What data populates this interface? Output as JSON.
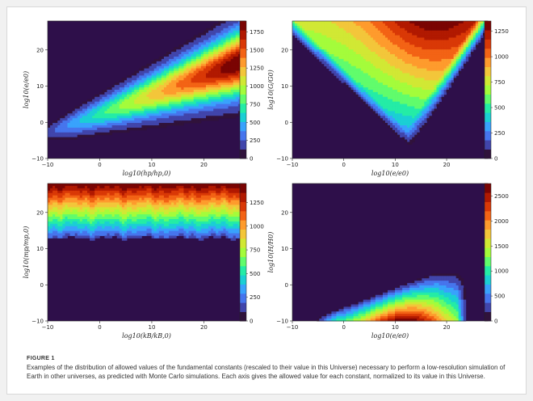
{
  "figure": {
    "label": "FIGURE 1",
    "caption": "Examples of the distribution of allowed values of the fundamental constants (rescaled to their value in this Universe) necessary to perform a low-resolution simulation of Earth in other universes, as predicted with Monte Carlo simulations. Each axis gives the allowed value for each constant, normalized to its value in this Universe."
  },
  "colors": {
    "background": "#2e0f4a",
    "colormap": [
      "#30123b",
      "#4145ab",
      "#4675ed",
      "#39a2fc",
      "#1bcfd4",
      "#24eca6",
      "#61fc6c",
      "#a4fc3b",
      "#d1e834",
      "#f3c63a",
      "#fe9b2d",
      "#f36315",
      "#d93806",
      "#b11901",
      "#7a0403"
    ]
  },
  "chart_data": [
    {
      "type": "heatmap",
      "position": "top-left",
      "xlabel": "log10(hp/hp,0)",
      "ylabel": "log10(e/e0)",
      "xlim": [
        -10,
        28
      ],
      "ylim": [
        -10,
        28
      ],
      "xticks": [
        -10,
        0,
        10,
        20
      ],
      "yticks": [
        -10,
        0,
        10,
        20
      ],
      "colorbar": {
        "ticks": [
          0,
          250,
          500,
          750,
          1000,
          1250,
          1500,
          1750
        ],
        "max": 1900
      },
      "shape": {
        "kind": "band",
        "center_line": [
          [
            -10,
            -3
          ],
          [
            28,
            17
          ]
        ],
        "peak_at": [
          25,
          15
        ],
        "peak_value": 1900
      }
    },
    {
      "type": "heatmap",
      "position": "top-right",
      "xlabel": "log10(e/e0)",
      "ylabel": "log10(G/G0)",
      "xlim": [
        -10,
        28
      ],
      "ylim": [
        -10,
        28
      ],
      "xticks": [
        -10,
        0,
        10,
        20
      ],
      "yticks": [
        -10,
        0,
        10,
        20
      ],
      "colorbar": {
        "ticks": [
          0,
          250,
          500,
          750,
          1000,
          1250
        ],
        "max": 1350
      },
      "shape": {
        "kind": "wedge",
        "vertex": [
          13,
          -8
        ],
        "peak_at": [
          18,
          28
        ],
        "peak_value": 1350
      }
    },
    {
      "type": "heatmap",
      "position": "bottom-left",
      "xlabel": "log10(kB/kB,0)",
      "ylabel": "log10(mp/mp,0)",
      "xlim": [
        -10,
        28
      ],
      "ylim": [
        -10,
        28
      ],
      "xticks": [
        -10,
        0,
        10,
        20
      ],
      "yticks": [
        -10,
        0,
        10,
        20
      ],
      "colorbar": {
        "ticks": [
          0,
          250,
          500,
          750,
          1000,
          1250
        ],
        "max": 1450
      },
      "shape": {
        "kind": "horizontal",
        "lower_edge": 13,
        "peak_at_y": 28,
        "peak_value": 1450
      }
    },
    {
      "type": "heatmap",
      "position": "bottom-right",
      "xlabel": "log10(e/e0)",
      "ylabel": "log10(H/H0)",
      "xlim": [
        -10,
        28
      ],
      "ylim": [
        -10,
        28
      ],
      "xticks": [
        -10,
        0,
        10,
        20
      ],
      "yticks": [
        -10,
        0,
        10,
        20
      ],
      "colorbar": {
        "ticks": [
          0,
          500,
          1000,
          1500,
          2000,
          2500
        ],
        "max": 2750
      },
      "shape": {
        "kind": "wedge-low",
        "x_range": [
          -3,
          23
        ],
        "top_edge": 4,
        "peak_at": [
          12,
          -10
        ],
        "peak_value": 2750
      }
    }
  ]
}
